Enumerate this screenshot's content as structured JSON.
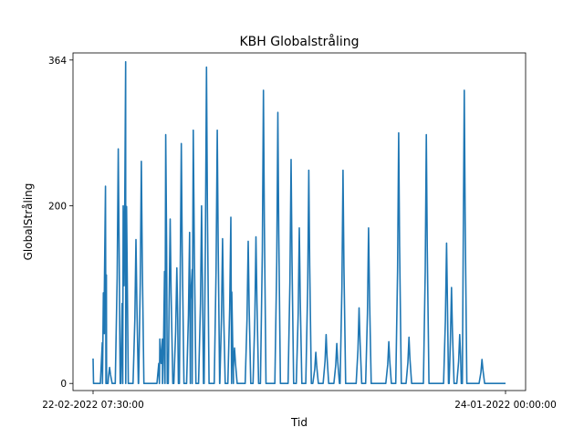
{
  "chart_data": {
    "type": "line",
    "title": "KBH Globalstråling",
    "xlabel": "Tid",
    "ylabel": "GlobalStråling",
    "yticks": [
      0,
      200,
      364
    ],
    "xticks": [
      "22-02-2022 07:30:00",
      "24-01-2022 00:00:00"
    ],
    "ylim": [
      -8,
      372
    ],
    "grid": false,
    "legend": "none",
    "color": "#1f77b4",
    "series": [
      {
        "peaks": [
          {
            "t": 0.025,
            "v": 102
          },
          {
            "t": 0.03,
            "v": 222
          },
          {
            "t": 0.04,
            "v": 18
          },
          {
            "t": 0.061,
            "v": 264
          },
          {
            "t": 0.073,
            "v": 200
          },
          {
            "t": 0.079,
            "v": 362
          },
          {
            "t": 0.104,
            "v": 162
          },
          {
            "t": 0.117,
            "v": 250
          },
          {
            "t": 0.162,
            "v": 50
          },
          {
            "t": 0.168,
            "v": 50
          },
          {
            "t": 0.176,
            "v": 280
          },
          {
            "t": 0.187,
            "v": 185
          },
          {
            "t": 0.203,
            "v": 130
          },
          {
            "t": 0.214,
            "v": 270
          },
          {
            "t": 0.234,
            "v": 170
          },
          {
            "t": 0.243,
            "v": 285
          },
          {
            "t": 0.263,
            "v": 200
          },
          {
            "t": 0.275,
            "v": 356
          },
          {
            "t": 0.301,
            "v": 285
          },
          {
            "t": 0.314,
            "v": 163
          },
          {
            "t": 0.334,
            "v": 187
          },
          {
            "t": 0.343,
            "v": 40
          },
          {
            "t": 0.376,
            "v": 160
          },
          {
            "t": 0.395,
            "v": 165
          },
          {
            "t": 0.413,
            "v": 330
          },
          {
            "t": 0.448,
            "v": 305
          },
          {
            "t": 0.48,
            "v": 252
          },
          {
            "t": 0.5,
            "v": 175
          },
          {
            "t": 0.523,
            "v": 240
          },
          {
            "t": 0.54,
            "v": 35
          },
          {
            "t": 0.565,
            "v": 55
          },
          {
            "t": 0.591,
            "v": 45
          },
          {
            "t": 0.606,
            "v": 240
          },
          {
            "t": 0.645,
            "v": 85
          },
          {
            "t": 0.668,
            "v": 175
          },
          {
            "t": 0.717,
            "v": 47
          },
          {
            "t": 0.741,
            "v": 282
          },
          {
            "t": 0.766,
            "v": 52
          },
          {
            "t": 0.808,
            "v": 280
          },
          {
            "t": 0.857,
            "v": 158
          },
          {
            "t": 0.869,
            "v": 108
          },
          {
            "t": 0.889,
            "v": 55
          },
          {
            "t": 0.9,
            "v": 330
          },
          {
            "t": 0.943,
            "v": 27
          }
        ]
      }
    ]
  }
}
